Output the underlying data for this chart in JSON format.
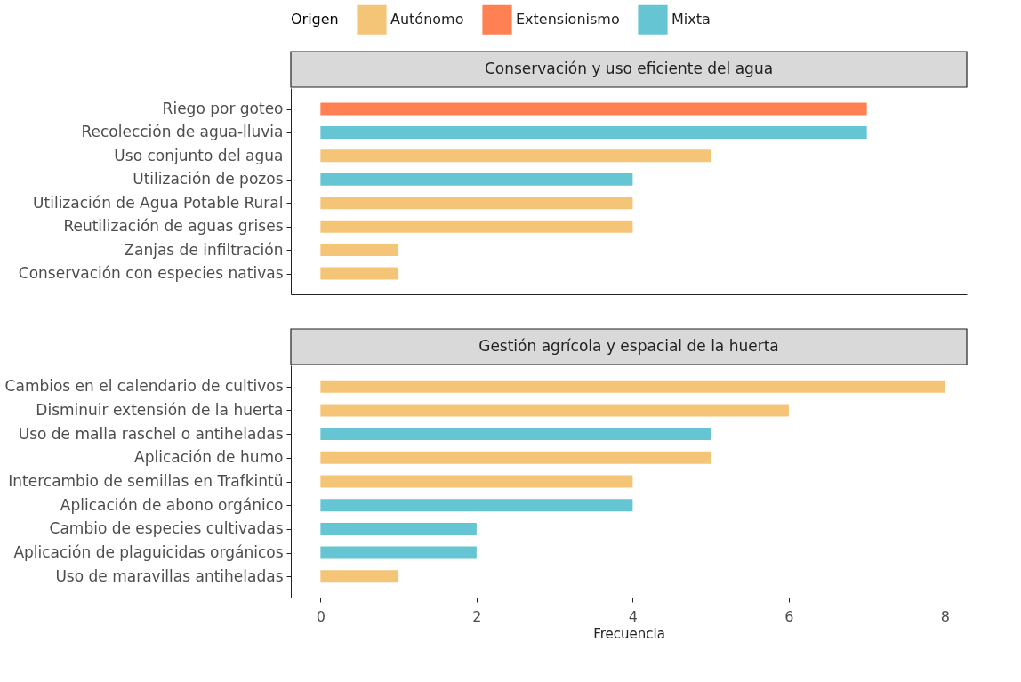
{
  "chart_data": [
    {
      "type": "bar",
      "orientation": "horizontal",
      "title": "Conservación y uso eficiente del agua",
      "legend_title": "Origen",
      "legend": "top",
      "tick_labels": "y",
      "categories": [
        "Riego por goteo",
        "Recolección de agua-lluvia",
        "Uso conjunto del agua",
        "Utilización de pozos",
        "Utilización de Agua Potable Rural",
        "Reutilización de aguas grises",
        "Zanjas de infiltración",
        "Conservación con especies nativas"
      ],
      "series": [
        {
          "name": "Autónomo",
          "color": "#f5c577",
          "values": [
            null,
            null,
            5,
            null,
            4,
            4,
            1,
            1
          ]
        },
        {
          "name": "Extensionismo",
          "color": "#ff8052",
          "values": [
            7,
            null,
            null,
            null,
            null,
            null,
            null,
            null
          ]
        },
        {
          "name": "Mixta",
          "color": "#65c5d2",
          "values": [
            null,
            7,
            null,
            4,
            null,
            null,
            null,
            null
          ]
        }
      ],
      "xlim": [
        -0.38,
        8.28
      ],
      "xticks": [
        0,
        2,
        4,
        6,
        8
      ]
    },
    {
      "type": "bar",
      "orientation": "horizontal",
      "title": "Gestión agrícola y espacial de la huerta",
      "xlabel": "Frecuencia",
      "categories": [
        "Cambios en el calendario de cultivos",
        "Disminuir extensión de la huerta",
        "Uso de malla raschel o antiheladas",
        "Aplicación de humo",
        "Intercambio de semillas en Trafkintü",
        "Aplicación de abono orgánico",
        "Cambio de especies cultivadas",
        "Aplicación de plaguicidas orgánicos",
        "Uso de maravillas antiheladas"
      ],
      "series": [
        {
          "name": "Autónomo",
          "color": "#f5c577",
          "values": [
            8,
            6,
            null,
            5,
            4,
            null,
            null,
            null,
            1
          ]
        },
        {
          "name": "Extensionismo",
          "color": "#ff8052",
          "values": [
            null,
            null,
            null,
            null,
            null,
            null,
            null,
            null,
            null
          ]
        },
        {
          "name": "Mixta",
          "color": "#65c5d2",
          "values": [
            null,
            null,
            5,
            null,
            null,
            4,
            2,
            2,
            null
          ]
        }
      ],
      "xlim": [
        -0.38,
        8.28
      ],
      "xticks": [
        0,
        2,
        4,
        6,
        8
      ]
    }
  ]
}
